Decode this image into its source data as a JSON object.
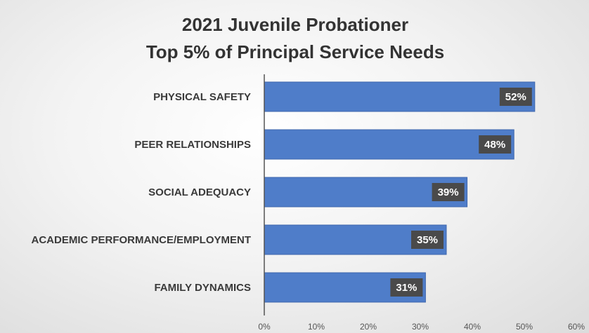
{
  "chart_data": {
    "type": "bar",
    "orientation": "horizontal",
    "title": [
      "2021 Juvenile Probationer",
      "Top 5% of Principal Service Needs"
    ],
    "categories": [
      "PHYSICAL SAFETY",
      "PEER RELATIONSHIPS",
      "SOCIAL ADEQUACY",
      "ACADEMIC PERFORMANCE/EMPLOYMENT",
      "FAMILY DYNAMICS"
    ],
    "values": [
      52,
      48,
      39,
      35,
      31
    ],
    "data_labels": [
      "52%",
      "48%",
      "39%",
      "35%",
      "31%"
    ],
    "xlim": [
      0,
      60
    ],
    "x_ticks": [
      "0%",
      "10%",
      "20%",
      "30%",
      "40%",
      "50%",
      "60%"
    ],
    "grid": false,
    "colors": {
      "bar": "#4f7dc9",
      "bar_edge": "#3f67ad",
      "label_box": "#4a4a4a",
      "axis": "#555555"
    }
  }
}
